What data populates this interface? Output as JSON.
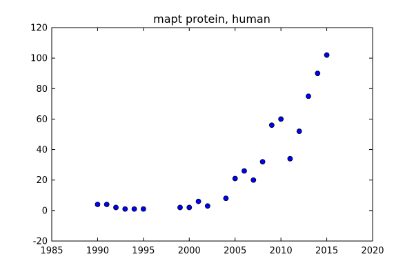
{
  "chart_data": {
    "type": "scatter",
    "title": "mapt protein, human",
    "xlabel": "",
    "ylabel": "",
    "xlim": [
      1985,
      2020
    ],
    "ylim": [
      -20,
      120
    ],
    "xticks": [
      1985,
      1990,
      1995,
      2000,
      2005,
      2010,
      2015,
      2020
    ],
    "yticks": [
      -20,
      0,
      20,
      40,
      60,
      80,
      100,
      120
    ],
    "grid": false,
    "legend": "none",
    "marker_color": "#0000ff",
    "marker_edge_color": "#000000",
    "points": [
      {
        "x": 1990,
        "y": 4
      },
      {
        "x": 1991,
        "y": 4
      },
      {
        "x": 1992,
        "y": 2
      },
      {
        "x": 1993,
        "y": 1
      },
      {
        "x": 1994,
        "y": 1
      },
      {
        "x": 1995,
        "y": 1
      },
      {
        "x": 1999,
        "y": 2
      },
      {
        "x": 2000,
        "y": 2
      },
      {
        "x": 2001,
        "y": 6
      },
      {
        "x": 2002,
        "y": 3
      },
      {
        "x": 2004,
        "y": 8
      },
      {
        "x": 2005,
        "y": 21
      },
      {
        "x": 2006,
        "y": 26
      },
      {
        "x": 2007,
        "y": 20
      },
      {
        "x": 2008,
        "y": 32
      },
      {
        "x": 2009,
        "y": 56
      },
      {
        "x": 2010,
        "y": 60
      },
      {
        "x": 2011,
        "y": 34
      },
      {
        "x": 2012,
        "y": 52
      },
      {
        "x": 2013,
        "y": 75
      },
      {
        "x": 2014,
        "y": 90
      },
      {
        "x": 2015,
        "y": 102
      }
    ]
  }
}
